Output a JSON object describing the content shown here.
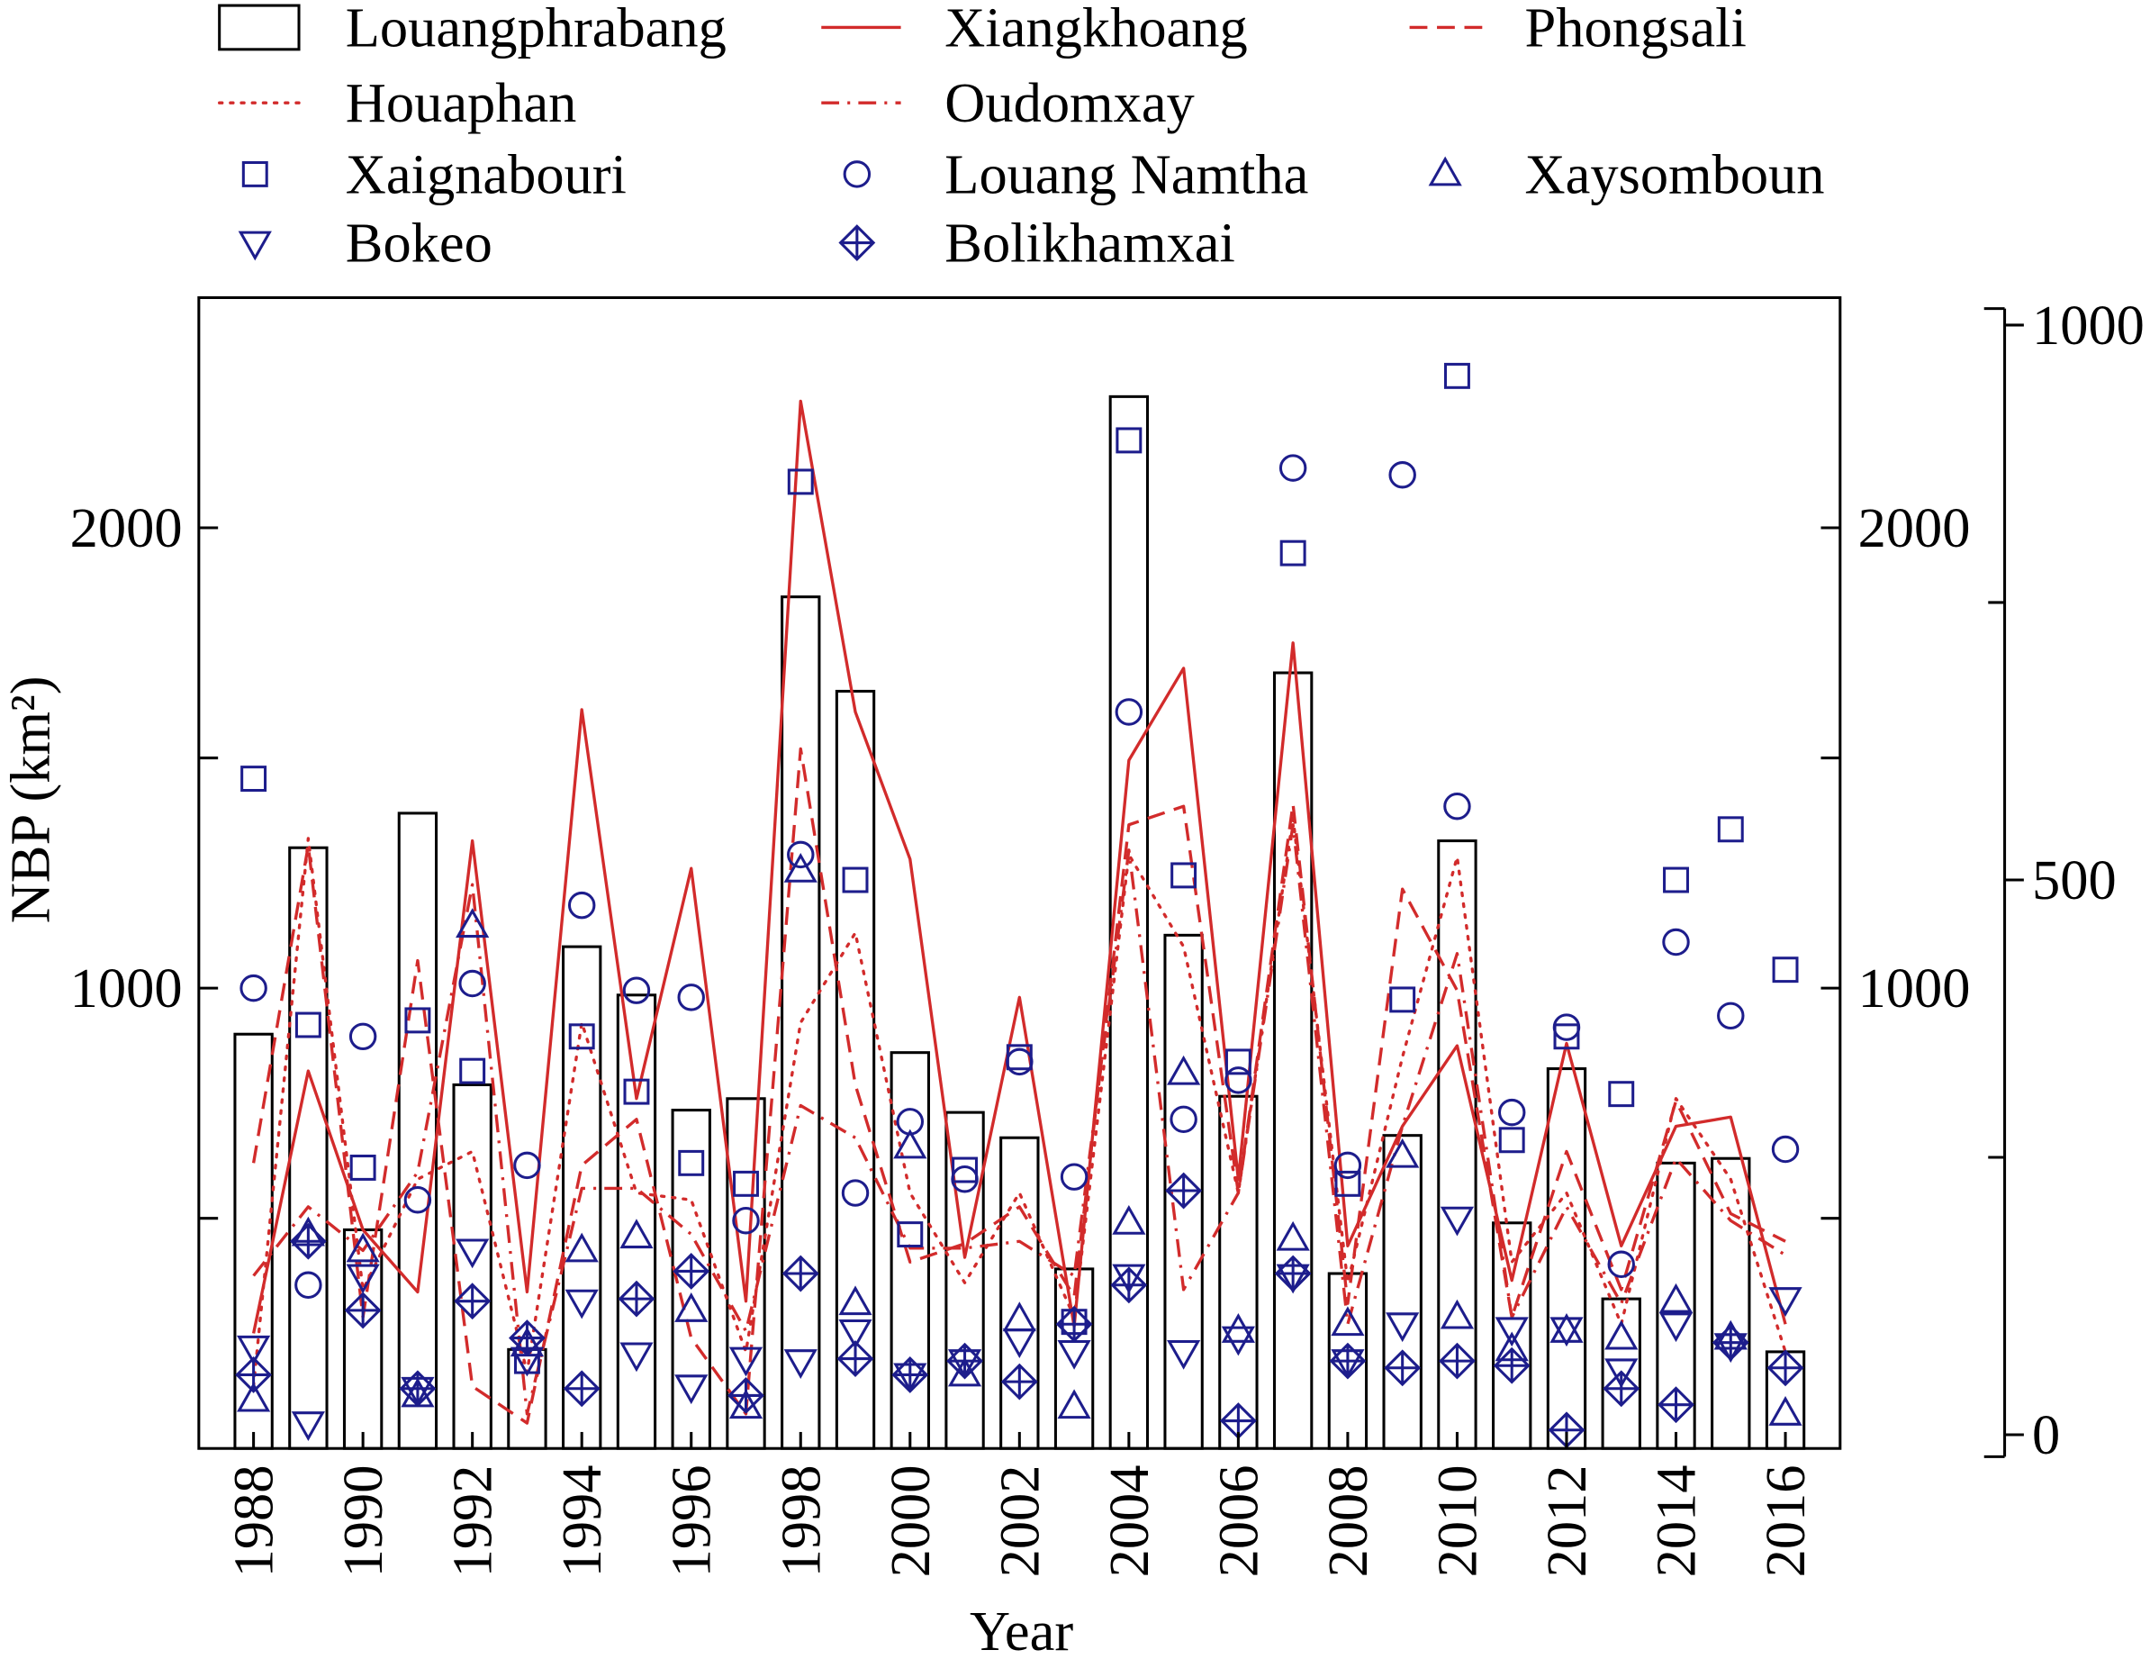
{
  "chart_data": {
    "type": "bar",
    "xlabel": "Year",
    "ylabel": "NBP (km²)",
    "x": [
      1988,
      1989,
      1990,
      1991,
      1992,
      1993,
      1994,
      1995,
      1996,
      1997,
      1998,
      1999,
      2000,
      2001,
      2002,
      2003,
      2004,
      2005,
      2006,
      2007,
      2008,
      2009,
      2010,
      2011,
      2012,
      2013,
      2014,
      2015,
      2016
    ],
    "xlim": [
      1987,
      2017
    ],
    "xticks": [
      1988,
      1990,
      1992,
      1994,
      1996,
      1998,
      2000,
      2002,
      2004,
      2006,
      2008,
      2010,
      2012,
      2014,
      2016
    ],
    "ylim": [
      0,
      2500
    ],
    "yticks": [
      1000,
      2000
    ],
    "yticks_minor": [
      500,
      1500
    ],
    "y_right": {
      "ylim": [
        0,
        2500
      ],
      "ticks": [
        1000,
        2000
      ]
    },
    "y_outer": {
      "ylim": [
        0,
        1000
      ],
      "ticks": [
        0,
        500,
        1000
      ],
      "minor_ticks": [
        250,
        750
      ]
    },
    "grid": false,
    "legend_position": "top",
    "colors": {
      "bar_edge": "#000000",
      "line": "#d22b2b",
      "marker": "#1d1d8c"
    },
    "series": [
      {
        "name": "Louangphrabang",
        "type": "bar",
        "values": [
          900,
          1305,
          475,
          1380,
          790,
          215,
          1090,
          985,
          735,
          760,
          1850,
          1645,
          860,
          730,
          675,
          390,
          2285,
          1115,
          765,
          1685,
          380,
          680,
          1320,
          490,
          825,
          325,
          620,
          630,
          210
        ]
      },
      {
        "name": "Xiangkhoang",
        "type": "line",
        "line_style": "solid",
        "values": [
          250,
          820,
          475,
          340,
          1320,
          340,
          1605,
          760,
          1260,
          320,
          2275,
          1600,
          1280,
          415,
          980,
          265,
          1495,
          1695,
          585,
          1750,
          440,
          700,
          875,
          365,
          880,
          440,
          700,
          720,
          270
        ]
      },
      {
        "name": "Phongsali",
        "type": "line",
        "line_style": "dashed",
        "values": [
          620,
          1310,
          285,
          1060,
          135,
          55,
          615,
          715,
          240,
          75,
          1520,
          790,
          405,
          445,
          525,
          330,
          1355,
          1395,
          555,
          1400,
          315,
          1215,
          995,
          285,
          645,
          345,
          755,
          510,
          450
        ]
      },
      {
        "name": "Houaphan",
        "type": "line",
        "line_style": "dotted",
        "values": [
          135,
          1325,
          345,
          585,
          645,
          165,
          925,
          555,
          540,
          210,
          925,
          1120,
          555,
          360,
          555,
          285,
          1290,
          1090,
          555,
          1370,
          360,
          850,
          1285,
          405,
          555,
          270,
          760,
          585,
          210
        ]
      },
      {
        "name": "Oudomxay",
        "type": "line",
        "line_style": "dashdot",
        "values": [
          375,
          525,
          430,
          600,
          1225,
          75,
          565,
          565,
          465,
          255,
          745,
          675,
          435,
          435,
          450,
          375,
          1300,
          345,
          555,
          1355,
          270,
          700,
          1075,
          285,
          525,
          315,
          630,
          495,
          420
        ]
      },
      {
        "name": "Xaignabouri",
        "type": "scatter",
        "marker": "square",
        "values": [
          1455,
          920,
          610,
          930,
          820,
          190,
          895,
          775,
          620,
          575,
          2100,
          1235,
          465,
          605,
          850,
          275,
          2190,
          1245,
          840,
          1945,
          575,
          975,
          2330,
          670,
          895,
          770,
          1235,
          1345,
          1040
        ]
      },
      {
        "name": "Louang Namtha",
        "type": "scatter",
        "marker": "circle",
        "values": [
          1000,
          355,
          895,
          540,
          1010,
          615,
          1180,
          995,
          980,
          495,
          1290,
          555,
          710,
          585,
          840,
          590,
          1600,
          715,
          800,
          2130,
          615,
          2115,
          1395,
          730,
          915,
          400,
          1100,
          940,
          650
        ]
      },
      {
        "name": "Xaysomboun",
        "type": "scatter",
        "marker": "triangle-up",
        "values": [
          105,
          465,
          430,
          115,
          1135,
          225,
          430,
          460,
          300,
          90,
          1255,
          315,
          655,
          160,
          280,
          90,
          490,
          815,
          255,
          455,
          270,
          635,
          285,
          215,
          255,
          240,
          320,
          240,
          75
        ]
      },
      {
        "name": "Bokeo",
        "type": "scatter",
        "marker": "triangle-down",
        "values": [
          220,
          55,
          375,
          130,
          430,
          195,
          320,
          205,
          135,
          195,
          190,
          255,
          160,
          190,
          235,
          210,
          375,
          210,
          240,
          375,
          190,
          270,
          500,
          260,
          260,
          170,
          270,
          225,
          325
        ]
      },
      {
        "name": "Bolikhamxai",
        "type": "scatter",
        "marker": "diamond-plus",
        "values": [
          160,
          450,
          300,
          130,
          320,
          240,
          130,
          325,
          385,
          115,
          380,
          195,
          160,
          190,
          145,
          270,
          355,
          560,
          60,
          380,
          190,
          175,
          190,
          180,
          40,
          130,
          95,
          230,
          175
        ]
      }
    ]
  }
}
